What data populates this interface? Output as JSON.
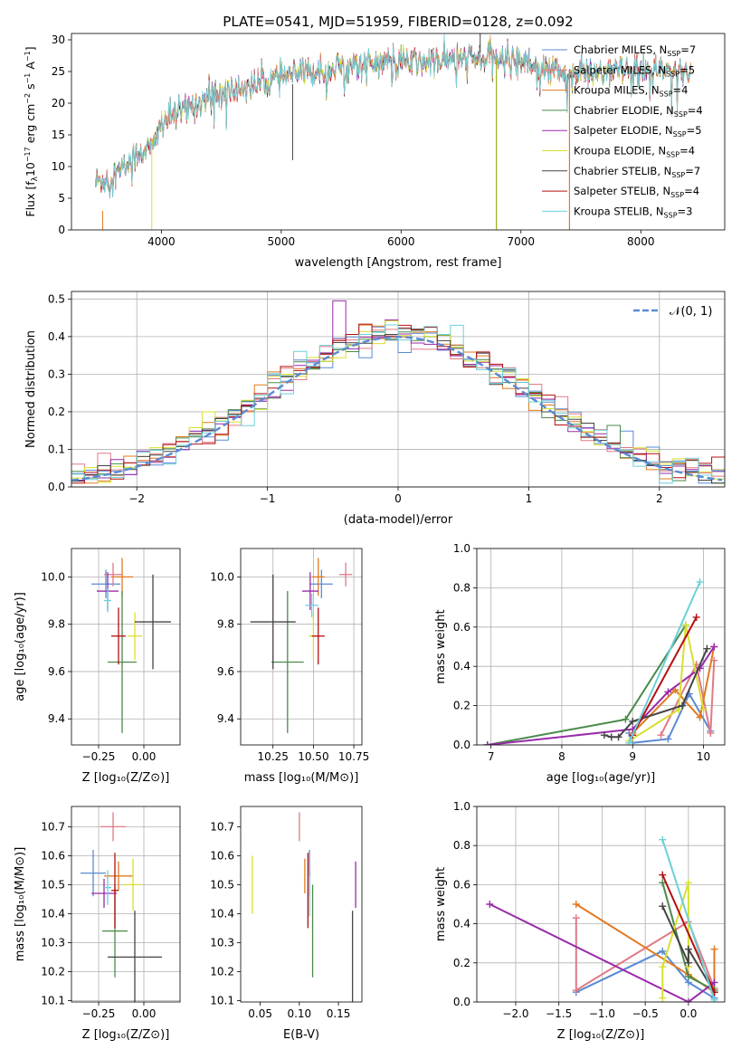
{
  "chart_data": [
    {
      "id": "spectrum",
      "type": "line",
      "title": "PLATE=0541, MJD=51959, FIBERID=0128, z=0.092",
      "xlabel": "wavelength [Angstrom, rest frame]",
      "ylabel": "Flux [f$_\\lambda$10$^{-17}$ erg cm$^{-2}$ s$^{-1}$ A$^{-1}$]",
      "ylabel_parts": {
        "a": "Flux [f",
        "b": "λ",
        "c": "10",
        "d": "−17",
        "e": " erg cm",
        "f": "−2",
        "g": " s",
        "h": "−1",
        "i": " A",
        "j": "−1",
        "k": "]"
      },
      "xlim": [
        3250,
        8700
      ],
      "ylim": [
        0,
        31
      ],
      "xticks": [
        4000,
        5000,
        6000,
        7000,
        8000
      ],
      "yticks": [
        0,
        5,
        10,
        15,
        20,
        25,
        30
      ],
      "legend_position": "top-right",
      "grid": false,
      "shape_points": [
        [
          3450,
          7.5
        ],
        [
          3600,
          8.5
        ],
        [
          3700,
          10
        ],
        [
          3800,
          12
        ],
        [
          3950,
          13.5
        ],
        [
          4000,
          17
        ],
        [
          4100,
          18
        ],
        [
          4200,
          19
        ],
        [
          4300,
          20
        ],
        [
          4400,
          21
        ],
        [
          4500,
          21.5
        ],
        [
          4700,
          22.5
        ],
        [
          4900,
          23.5
        ],
        [
          5100,
          24.5
        ],
        [
          5300,
          25
        ],
        [
          5600,
          26
        ],
        [
          5900,
          26.5
        ],
        [
          6200,
          26.5
        ],
        [
          6500,
          27
        ],
        [
          6800,
          27
        ],
        [
          7000,
          27
        ],
        [
          7100,
          26
        ],
        [
          7200,
          25.5
        ],
        [
          7400,
          24.5
        ],
        [
          7800,
          25
        ],
        [
          8200,
          25
        ],
        [
          8400,
          25
        ]
      ],
      "series": [
        {
          "name": "Chabrier MILES",
          "nssp": "7",
          "color": "#5a8ad4"
        },
        {
          "name": "Salpeter MILES",
          "nssp": "5",
          "color": "#e07a85"
        },
        {
          "name": "Kroupa MILES",
          "nssp": "4",
          "color": "#e07a20"
        },
        {
          "name": "Chabrier ELODIE",
          "nssp": "4",
          "color": "#4a8a4a"
        },
        {
          "name": "Salpeter ELODIE",
          "nssp": "5",
          "color": "#9a2aaa"
        },
        {
          "name": "Kroupa ELODIE",
          "nssp": "4",
          "color": "#d8e030"
        },
        {
          "name": "Chabrier STELIB",
          "nssp": "7",
          "color": "#444444"
        },
        {
          "name": "Salpeter STELIB",
          "nssp": "4",
          "color": "#b41010"
        },
        {
          "name": "Kroupa STELIB",
          "nssp": "3",
          "color": "#6cd0d8"
        }
      ]
    },
    {
      "id": "residuals",
      "type": "line",
      "xlabel": "(data-model)/error",
      "ylabel": "Normed distribution",
      "xlim": [
        -2.5,
        2.5
      ],
      "ylim": [
        0,
        0.52
      ],
      "xticks": [
        -2,
        -1,
        0,
        1,
        2
      ],
      "xtick_labels": [
        "−2",
        "−1",
        "0",
        "1",
        "2"
      ],
      "yticks": [
        0.0,
        0.1,
        0.2,
        0.3,
        0.4,
        0.5
      ],
      "ytick_labels": [
        "0.0",
        "0.1",
        "0.2",
        "0.3",
        "0.4",
        "0.5"
      ],
      "grid": true,
      "legend_position": "top-right",
      "gaussian_label": "𝒩(0, 1)",
      "gaussian_color": "#5a8ad4",
      "bin_width": 0.1,
      "hist_colors": [
        "#5a8ad4",
        "#e07a85",
        "#e07a20",
        "#4a8a4a",
        "#9a2aaa",
        "#d8e030",
        "#444444",
        "#b41010",
        "#6cd0d8"
      ]
    },
    {
      "id": "age_vs_Z",
      "type": "scatter",
      "xlabel": "Z [log10(Z/Z⊙)]",
      "ylabel": "age [log10(age/yr)]",
      "xlim": [
        -0.4,
        0.2
      ],
      "ylim": [
        9.29,
        10.12
      ],
      "xticks": [
        -0.25,
        0.0
      ],
      "xtick_labels": [
        "−0.25",
        "0.00"
      ],
      "yticks": [
        9.4,
        9.6,
        9.8,
        10.0
      ],
      "ytick_labels": [
        "9.4",
        "9.6",
        "9.8",
        "10.0"
      ],
      "grid": true,
      "points": [
        {
          "x": -0.21,
          "y": 9.97,
          "xerr": 0.08,
          "yerr": 0.06,
          "color": "#5a8ad4"
        },
        {
          "x": -0.17,
          "y": 10.01,
          "xerr": 0.05,
          "yerr": 0.05,
          "color": "#e07a85"
        },
        {
          "x": -0.12,
          "y": 10.0,
          "xerr": 0.06,
          "yerr": 0.08,
          "color": "#e07a20"
        },
        {
          "x": -0.12,
          "y": 9.64,
          "xerr": 0.08,
          "yerr": 0.3,
          "color": "#4a8a4a"
        },
        {
          "x": -0.2,
          "y": 9.94,
          "xerr": 0.06,
          "yerr": 0.08,
          "color": "#9a2aaa"
        },
        {
          "x": -0.05,
          "y": 9.75,
          "xerr": 0.04,
          "yerr": 0.1,
          "color": "#d8e030"
        },
        {
          "x": 0.05,
          "y": 9.81,
          "xerr": 0.1,
          "yerr": 0.2,
          "color": "#444444"
        },
        {
          "x": -0.14,
          "y": 9.75,
          "xerr": 0.04,
          "yerr": 0.12,
          "color": "#b41010"
        },
        {
          "x": -0.2,
          "y": 9.9,
          "xerr": 0.02,
          "yerr": 0.05,
          "color": "#6cd0d8"
        }
      ]
    },
    {
      "id": "age_vs_mass",
      "type": "scatter",
      "xlabel": "mass [log10(M/M⊙)]",
      "xlim": [
        10.05,
        10.8
      ],
      "ylim": [
        9.29,
        10.12
      ],
      "xticks": [
        10.25,
        10.5,
        10.75
      ],
      "xtick_labels": [
        "10.25",
        "10.50",
        "10.75"
      ],
      "yticks": [
        9.4,
        9.6,
        9.8,
        10.0
      ],
      "ytick_labels": [
        "9.4",
        "9.6",
        "9.8",
        "10.0"
      ],
      "grid": true,
      "points": [
        {
          "x": 10.55,
          "y": 9.97,
          "xerr": 0.07,
          "yerr": 0.06,
          "color": "#5a8ad4"
        },
        {
          "x": 10.7,
          "y": 10.01,
          "xerr": 0.04,
          "yerr": 0.05,
          "color": "#e07a85"
        },
        {
          "x": 10.53,
          "y": 10.0,
          "xerr": 0.04,
          "yerr": 0.08,
          "color": "#e07a20"
        },
        {
          "x": 10.34,
          "y": 9.64,
          "xerr": 0.1,
          "yerr": 0.3,
          "color": "#4a8a4a"
        },
        {
          "x": 10.48,
          "y": 9.94,
          "xerr": 0.05,
          "yerr": 0.08,
          "color": "#9a2aaa"
        },
        {
          "x": 10.5,
          "y": 9.75,
          "xerr": 0.03,
          "yerr": 0.1,
          "color": "#d8e030"
        },
        {
          "x": 10.25,
          "y": 9.81,
          "xerr": 0.14,
          "yerr": 0.2,
          "color": "#444444"
        },
        {
          "x": 10.53,
          "y": 9.75,
          "xerr": 0.04,
          "yerr": 0.12,
          "color": "#b41010"
        },
        {
          "x": 10.49,
          "y": 9.88,
          "xerr": 0.04,
          "yerr": 0.05,
          "color": "#6cd0d8"
        }
      ]
    },
    {
      "id": "mass_weight_vs_age",
      "type": "line",
      "xlabel": "age [log10(age/yr)]",
      "ylabel": "mass weight",
      "xlim": [
        6.8,
        10.3
      ],
      "ylim": [
        0,
        1
      ],
      "xticks": [
        7,
        8,
        9,
        10
      ],
      "xtick_labels": [
        "7",
        "8",
        "9",
        "10"
      ],
      "yticks": [
        0.0,
        0.2,
        0.4,
        0.6,
        0.8,
        1.0
      ],
      "ytick_labels": [
        "0.0",
        "0.2",
        "0.4",
        "0.6",
        "0.8",
        "1.0"
      ],
      "grid": true,
      "series": [
        {
          "color": "#5a8ad4",
          "x": [
            8.95,
            9.0,
            9.5,
            9.8,
            10.1
          ],
          "y": [
            0.06,
            0.01,
            0.03,
            0.26,
            0.07
          ]
        },
        {
          "color": "#e07a85",
          "x": [
            9.4,
            9.9,
            10.1,
            10.15
          ],
          "y": [
            0.05,
            0.41,
            0.06,
            0.43
          ]
        },
        {
          "color": "#e07a20",
          "x": [
            9.0,
            9.6,
            9.95,
            10.15
          ],
          "y": [
            0.06,
            0.28,
            0.14,
            0.5
          ]
        },
        {
          "color": "#4a8a4a",
          "x": [
            6.95,
            8.9,
            9.75
          ],
          "y": [
            0.0,
            0.13,
            0.61
          ]
        },
        {
          "color": "#9a2aaa",
          "x": [
            6.95,
            9.0,
            9.5,
            9.95,
            10.15
          ],
          "y": [
            0.0,
            0.08,
            0.27,
            0.39,
            0.5
          ]
        },
        {
          "color": "#d8e030",
          "x": [
            8.95,
            9.65,
            9.75,
            10.0
          ],
          "y": [
            0.02,
            0.18,
            0.61,
            0.18
          ]
        },
        {
          "color": "#444444",
          "x": [
            8.6,
            8.7,
            8.8,
            9.0,
            9.7,
            10.05
          ],
          "y": [
            0.05,
            0.04,
            0.04,
            0.12,
            0.2,
            0.49
          ]
        },
        {
          "color": "#b41010",
          "x": [
            9.0,
            9.9
          ],
          "y": [
            0.05,
            0.65
          ]
        },
        {
          "color": "#6cd0d8",
          "x": [
            8.95,
            9.95
          ],
          "y": [
            0.01,
            0.83
          ]
        }
      ]
    },
    {
      "id": "mass_vs_Z",
      "type": "scatter",
      "xlabel": "Z [log10(Z/Z⊙)]",
      "ylabel": "mass [log10(M/M⊙)]",
      "xlim": [
        -0.4,
        0.2
      ],
      "ylim": [
        10.095,
        10.77
      ],
      "xticks": [
        -0.25,
        0.0
      ],
      "xtick_labels": [
        "−0.25",
        "0.00"
      ],
      "yticks": [
        10.1,
        10.2,
        10.3,
        10.4,
        10.5,
        10.6,
        10.7
      ],
      "ytick_labels": [
        "10.1",
        "10.2",
        "10.3",
        "10.4",
        "10.5",
        "10.6",
        "10.7"
      ],
      "grid": true,
      "points": [
        {
          "x": -0.28,
          "y": 10.54,
          "xerr": 0.07,
          "yerr": 0.08,
          "color": "#5a8ad4"
        },
        {
          "x": -0.17,
          "y": 10.7,
          "xerr": 0.07,
          "yerr": 0.05,
          "color": "#e07a85"
        },
        {
          "x": -0.14,
          "y": 10.53,
          "xerr": 0.08,
          "yerr": 0.05,
          "color": "#e07a20"
        },
        {
          "x": -0.16,
          "y": 10.34,
          "xerr": 0.07,
          "yerr": 0.16,
          "color": "#4a8a4a"
        },
        {
          "x": -0.22,
          "y": 10.47,
          "xerr": 0.07,
          "yerr": 0.05,
          "color": "#9a2aaa"
        },
        {
          "x": -0.06,
          "y": 10.5,
          "xerr": 0.05,
          "yerr": 0.09,
          "color": "#d8e030"
        },
        {
          "x": -0.05,
          "y": 10.25,
          "xerr": 0.15,
          "yerr": 0.16,
          "color": "#444444"
        },
        {
          "x": -0.16,
          "y": 10.48,
          "xerr": 0.02,
          "yerr": 0.13,
          "color": "#b41010"
        },
        {
          "x": -0.2,
          "y": 10.49,
          "xerr": 0.02,
          "yerr": 0.06,
          "color": "#6cd0d8"
        }
      ]
    },
    {
      "id": "mass_vs_EBV",
      "type": "scatter",
      "xlabel": "E(B-V)",
      "xlim": [
        0.025,
        0.18
      ],
      "ylim": [
        10.095,
        10.77
      ],
      "xticks": [
        0.05,
        0.1,
        0.15
      ],
      "xtick_labels": [
        "0.05",
        "0.10",
        "0.15"
      ],
      "yticks": [
        10.1,
        10.2,
        10.3,
        10.4,
        10.5,
        10.6,
        10.7
      ],
      "ytick_labels": [
        "10.1",
        "10.2",
        "10.3",
        "10.4",
        "10.5",
        "10.6",
        "10.7"
      ],
      "grid": false,
      "points": [
        {
          "x": 0.113,
          "y": 10.54,
          "yerr": 0.08,
          "color": "#5a8ad4"
        },
        {
          "x": 0.1,
          "y": 10.7,
          "yerr": 0.05,
          "color": "#e07a85"
        },
        {
          "x": 0.107,
          "y": 10.53,
          "yerr": 0.06,
          "color": "#e07a20"
        },
        {
          "x": 0.117,
          "y": 10.34,
          "yerr": 0.16,
          "color": "#4a8a4a"
        },
        {
          "x": 0.172,
          "y": 10.5,
          "yerr": 0.08,
          "color": "#9a2aaa"
        },
        {
          "x": 0.04,
          "y": 10.5,
          "yerr": 0.1,
          "color": "#d8e030"
        },
        {
          "x": 0.168,
          "y": 10.25,
          "yerr": 0.16,
          "color": "#444444"
        },
        {
          "x": 0.111,
          "y": 10.48,
          "yerr": 0.13,
          "color": "#b41010"
        },
        {
          "x": 0.113,
          "y": 10.46,
          "yerr": 0.07,
          "color": "#6cd0d8"
        }
      ]
    },
    {
      "id": "mass_weight_vs_Z",
      "type": "line",
      "xlabel": "Z [log10(Z/Z⊙)]",
      "ylabel": "mass weight",
      "xlim": [
        -2.45,
        0.42
      ],
      "ylim": [
        0,
        1
      ],
      "xticks": [
        -2.0,
        -1.5,
        -1.0,
        -0.5,
        0.0
      ],
      "xtick_labels": [
        "−2.0",
        "−1.5",
        "−1.0",
        "−0.5",
        "0.0"
      ],
      "yticks": [
        0.0,
        0.2,
        0.4,
        0.6,
        0.8,
        1.0
      ],
      "ytick_labels": [
        "0.0",
        "0.2",
        "0.4",
        "0.6",
        "0.8",
        "1.0"
      ],
      "grid": true,
      "series": [
        {
          "color": "#5a8ad4",
          "x": [
            -1.3,
            -0.3,
            0.0,
            0.3
          ],
          "y": [
            0.05,
            0.26,
            0.1,
            0.02
          ]
        },
        {
          "color": "#e07a85",
          "x": [
            -1.3,
            -1.3,
            0.0,
            0.3
          ],
          "y": [
            0.43,
            0.06,
            0.41,
            0.07
          ]
        },
        {
          "color": "#e07a20",
          "x": [
            -1.3,
            0.0,
            0.3,
            0.3
          ],
          "y": [
            0.5,
            0.14,
            0.05,
            0.27
          ]
        },
        {
          "color": "#4a8a4a",
          "x": [
            -0.3,
            0.0,
            0.3
          ],
          "y": [
            0.61,
            0.13,
            0.06
          ]
        },
        {
          "color": "#9a2aaa",
          "x": [
            -2.3,
            0.0,
            0.3
          ],
          "y": [
            0.5,
            0.0,
            0.1
          ]
        },
        {
          "color": "#d8e030",
          "x": [
            -0.3,
            -0.3,
            0.0,
            0.0
          ],
          "y": [
            0.02,
            0.18,
            0.61,
            0.18
          ]
        },
        {
          "color": "#444444",
          "x": [
            -0.3,
            0.0,
            0.0,
            0.3
          ],
          "y": [
            0.49,
            0.2,
            0.27,
            0.05
          ]
        },
        {
          "color": "#b41010",
          "x": [
            -0.3,
            0.3
          ],
          "y": [
            0.65,
            0.05
          ]
        },
        {
          "color": "#6cd0d8",
          "x": [
            -0.3,
            0.3
          ],
          "y": [
            0.83,
            0.01
          ]
        }
      ]
    }
  ]
}
